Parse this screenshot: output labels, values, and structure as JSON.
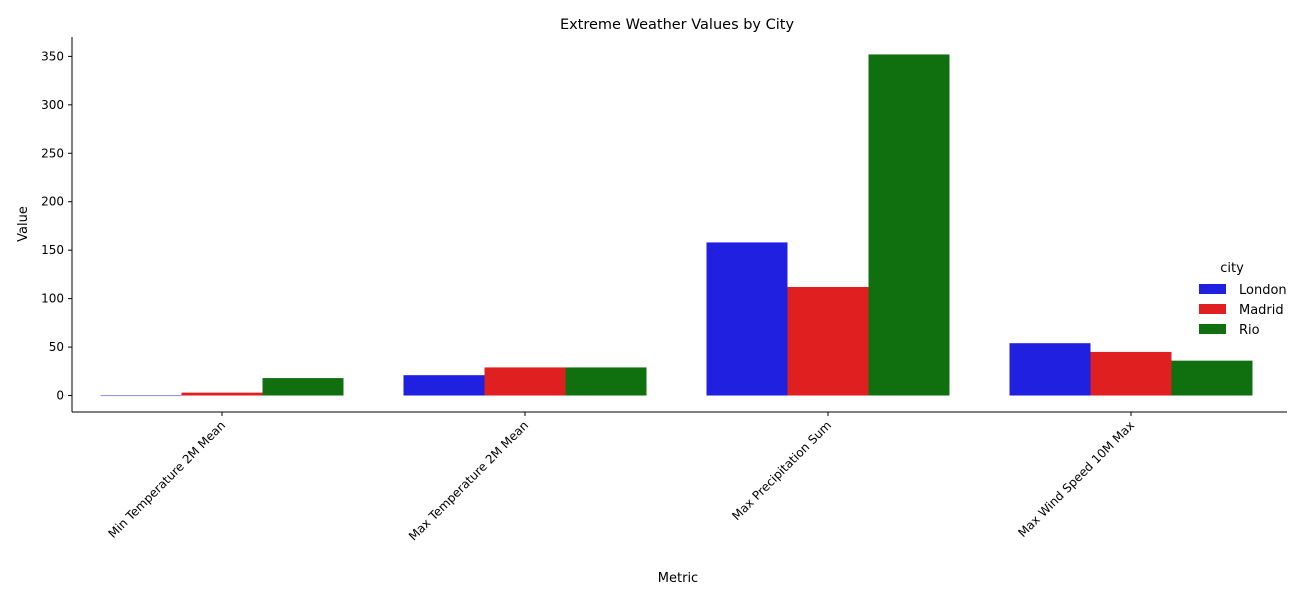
{
  "chart_data": {
    "type": "bar",
    "title": "Extreme Weather Values by City",
    "xlabel": "Metric",
    "ylabel": "Value",
    "ylim": [
      -17,
      370
    ],
    "yticks": [
      0,
      50,
      100,
      150,
      200,
      250,
      300,
      350
    ],
    "categories": [
      "Min Temperature 2M Mean",
      "Max Temperature 2M Mean",
      "Max Precipitation Sum",
      "Max Wind Speed 10M Max"
    ],
    "legend": {
      "title": "city",
      "placement": "right"
    },
    "grid": false,
    "series": [
      {
        "name": "London",
        "color": "#2020e0",
        "values": [
          -0.5,
          21,
          158,
          54
        ]
      },
      {
        "name": "Madrid",
        "color": "#e02020",
        "values": [
          3,
          29,
          112,
          45
        ]
      },
      {
        "name": "Rio",
        "color": "#107010",
        "values": [
          18,
          29,
          352,
          36
        ]
      }
    ]
  }
}
